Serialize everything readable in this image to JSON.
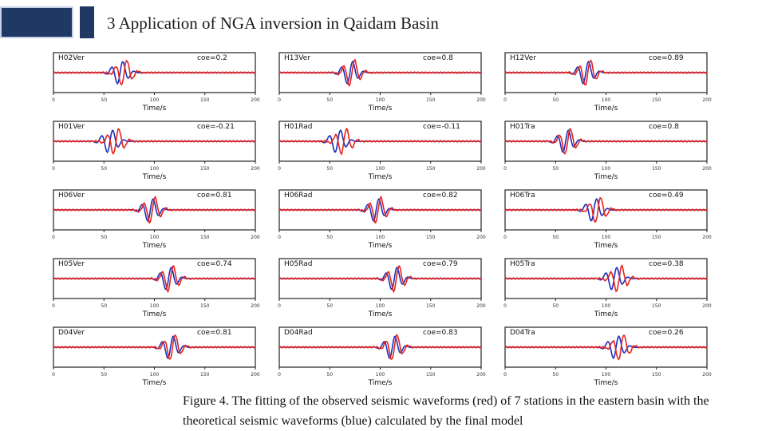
{
  "slide": {
    "title": "3  Application of NGA inversion in Qaidam Basin",
    "caption": "Figure 4. The fitting of the observed seismic waveforms (red) of 7 stations in the eastern basin with the theoretical seismic waveforms (blue) calculated by the final  model"
  },
  "colors": {
    "observed": "#e8221c",
    "synthetic": "#1a2fbf",
    "frame": "#222222",
    "accent": "#1f3864"
  },
  "chart_data": {
    "type": "line",
    "description_legend": {
      "observed": "red",
      "synthetic": "blue"
    },
    "xlabel": "Time/s",
    "xlim": [
      0,
      200
    ],
    "xticks": [
      "0",
      "50",
      "100",
      "150",
      "200"
    ],
    "panels": [
      {
        "label": "H02Ver",
        "coe": "coe=0.2",
        "peak": 66,
        "obs_shift": 4
      },
      {
        "label": "H13Ver",
        "coe": "coe=0.8",
        "peak": 70,
        "obs_shift": 2
      },
      {
        "label": "H12Ver",
        "coe": "coe=0.89",
        "peak": 80,
        "obs_shift": 2
      },
      {
        "label": "H01Ver",
        "coe": "coe=-0.21",
        "peak": 56,
        "obs_shift": 6
      },
      {
        "label": "H01Rad",
        "coe": "coe=-0.11",
        "peak": 58,
        "obs_shift": 6
      },
      {
        "label": "H01Tra",
        "coe": "coe=0.8",
        "peak": 60,
        "obs_shift": 2
      },
      {
        "label": "H06Ver",
        "coe": "coe=0.81",
        "peak": 96,
        "obs_shift": 2
      },
      {
        "label": "H06Rad",
        "coe": "coe=0.82",
        "peak": 96,
        "obs_shift": 2
      },
      {
        "label": "H06Tra",
        "coe": "coe=0.49",
        "peak": 88,
        "obs_shift": 4
      },
      {
        "label": "H05Ver",
        "coe": "coe=0.74",
        "peak": 114,
        "obs_shift": 2
      },
      {
        "label": "H05Rad",
        "coe": "coe=0.79",
        "peak": 114,
        "obs_shift": 2
      },
      {
        "label": "H05Tra",
        "coe": "coe=0.38",
        "peak": 108,
        "obs_shift": 5
      },
      {
        "label": "D04Ver",
        "coe": "coe=0.81",
        "peak": 116,
        "obs_shift": 2
      },
      {
        "label": "D04Rad",
        "coe": "coe=0.83",
        "peak": 112,
        "obs_shift": 2
      },
      {
        "label": "D04Tra",
        "coe": "coe=0.26",
        "peak": 110,
        "obs_shift": 5
      }
    ]
  }
}
